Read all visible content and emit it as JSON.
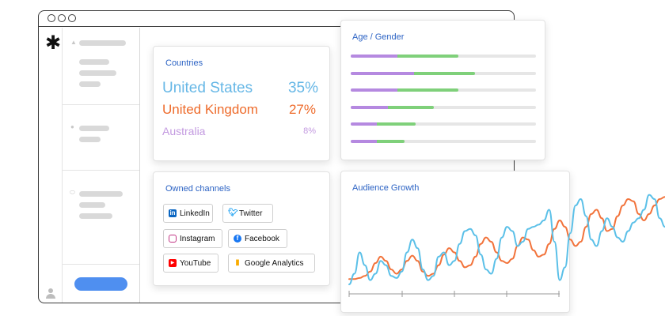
{
  "countries_card": {
    "title": "Countries",
    "rows": [
      {
        "name": "United States",
        "pct": "35%",
        "color": "#66b7e6"
      },
      {
        "name": "United Kingdom",
        "pct": "27%",
        "color": "#ee6b2b"
      },
      {
        "name": "Australia",
        "pct": "8%",
        "color": "#c39ae0"
      }
    ]
  },
  "channels_card": {
    "title": "Owned channels",
    "chips": [
      {
        "label": "LinkedIn",
        "icon": "linkedin-icon",
        "color": "#0a66c2"
      },
      {
        "label": "Twitter",
        "icon": "twitter-icon",
        "color": "#1da1f2"
      },
      {
        "label": "Instagram",
        "icon": "instagram-icon",
        "color": "#c13584"
      },
      {
        "label": "Facebook",
        "icon": "facebook-icon",
        "color": "#1877f2"
      },
      {
        "label": "YouTube",
        "icon": "youtube-icon",
        "color": "#ff0000"
      },
      {
        "label": "Google Analytics",
        "icon": "google-analytics-icon",
        "color": "#f9ab00"
      }
    ]
  },
  "age_gender_card": {
    "title": "Age / Gender",
    "rows": [
      {
        "purple": 0.25,
        "green": 0.33
      },
      {
        "purple": 0.34,
        "green": 0.33
      },
      {
        "purple": 0.25,
        "green": 0.33
      },
      {
        "purple": 0.2,
        "green": 0.25
      },
      {
        "purple": 0.14,
        "green": 0.21
      },
      {
        "purple": 0.14,
        "green": 0.15
      }
    ],
    "colors": {
      "purple": "#b589e0",
      "green": "#7fd07a",
      "track": "#e6e6e6"
    }
  },
  "audience_growth_card": {
    "title": "Audience Growth"
  },
  "chart_data": {
    "type": "line",
    "title": "Audience Growth",
    "x": [
      0,
      1,
      2,
      3,
      4,
      5,
      6,
      7,
      8,
      9,
      10,
      11,
      12,
      13,
      14,
      15,
      16,
      17,
      18,
      19,
      20,
      21,
      22,
      23,
      24,
      25,
      26,
      27,
      28,
      29,
      30,
      31,
      32,
      33,
      34,
      35,
      36,
      37,
      38,
      39,
      40,
      41,
      42,
      43,
      44,
      45,
      46,
      47,
      48,
      49,
      50,
      51,
      52,
      53,
      54,
      55,
      56,
      57,
      58,
      59,
      60
    ],
    "series": [
      {
        "color": "#f2733b",
        "values": [
          5,
          5,
          6,
          8,
          12,
          20,
          26,
          22,
          14,
          10,
          14,
          22,
          27,
          22,
          12,
          8,
          10,
          18,
          28,
          34,
          30,
          22,
          16,
          18,
          26,
          38,
          44,
          40,
          30,
          22,
          20,
          24,
          36,
          44,
          42,
          32,
          26,
          28,
          38,
          52,
          60,
          54,
          42,
          36,
          40,
          54,
          66,
          70,
          62,
          50,
          52,
          64,
          74,
          80,
          78,
          66,
          60,
          66,
          74,
          80,
          82
        ]
      },
      {
        "color": "#5bc0e8",
        "values": [
          0,
          10,
          30,
          18,
          4,
          10,
          22,
          18,
          8,
          6,
          12,
          30,
          42,
          34,
          14,
          4,
          8,
          26,
          30,
          18,
          22,
          38,
          50,
          52,
          46,
          28,
          14,
          10,
          24,
          44,
          54,
          50,
          36,
          40,
          52,
          54,
          56,
          60,
          70,
          40,
          4,
          16,
          48,
          74,
          80,
          64,
          42,
          36,
          50,
          62,
          54,
          44,
          40,
          50,
          58,
          62,
          70,
          84,
          80,
          62,
          54
        ]
      }
    ],
    "ylim": [
      0,
      100
    ],
    "grid": false,
    "legend": "none"
  }
}
